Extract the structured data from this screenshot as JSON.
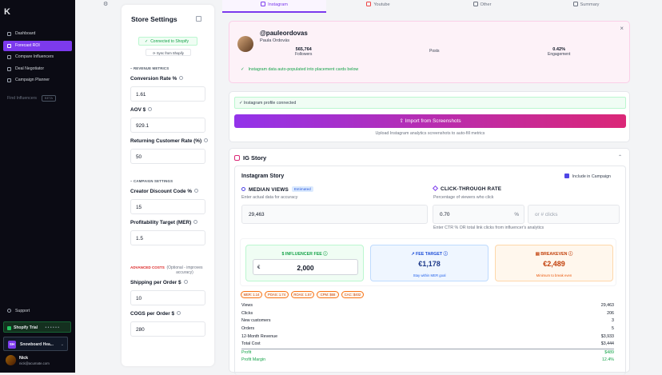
{
  "sidebar": {
    "logo": "K",
    "items": [
      {
        "label": "Dashboard"
      },
      {
        "label": "Forecast ROI"
      },
      {
        "label": "Compare Influencers"
      },
      {
        "label": "Deal Negotiator"
      },
      {
        "label": "Campaign Planner"
      }
    ],
    "find": "Find Influencers",
    "find_badge": "BETA",
    "support": "Support",
    "trial": "Shopify Trial",
    "trial_progress": "• • • • • •",
    "store_initials": "SH",
    "store_name": "Snowboard Hea...",
    "user_name": "Nick",
    "user_email": "nick@acumate.com"
  },
  "settings": {
    "title": "Store Settings",
    "connected": "Connected to Shopify",
    "sync": "Sync from Shopify",
    "revenue_section": "REVENUE METRICS",
    "conversion_label": "Conversion Rate %",
    "conversion_value": "1.61",
    "aov_label": "AOV $",
    "aov_value": "929.1",
    "returning_label": "Returning Customer Rate (%)",
    "returning_value": "50",
    "campaign_section": "CAMPAIGN SETTINGS",
    "discount_label": "Creator Discount Code %",
    "discount_value": "15",
    "mer_label": "Profitability Target (MER)",
    "mer_value": "1.5",
    "advanced_label": "ADVANCED COSTS",
    "advanced_note": "(Optional - improves accuracy)",
    "shipping_label": "Shipping per Order $",
    "shipping_value": "10",
    "cogs_label": "COGS per Order $",
    "cogs_value": "280"
  },
  "tabs": [
    {
      "label": "Instagram"
    },
    {
      "label": "Youtube"
    },
    {
      "label": "Other"
    },
    {
      "label": "Summary"
    }
  ],
  "profile": {
    "handle": "@pauleordovas",
    "name": "Paula Ordovás",
    "followers_value": "565,764",
    "followers_label": "Followers",
    "posts_label": "Posts",
    "engagement_value": "0.42%",
    "engagement_label": "Engagement",
    "autopop": "Instagram data auto-populated into placement cards below"
  },
  "import": {
    "connected": "✓ Instagram profile connected",
    "button": "Import from Screenshots",
    "note": "Upload Instagram analytics screenshots to auto-fill metrics"
  },
  "story": {
    "header": "IG Story",
    "title": "Instagram Story",
    "include": "Include in Campaign",
    "median_title": "MEDIAN VIEWS",
    "median_badge": "Estimated",
    "median_sub": "Enter actual data for accuracy",
    "median_value": "29,463",
    "ctr_title": "CLICK-THROUGH RATE",
    "ctr_sub": "Percentage of viewers who click",
    "ctr_value": "0.70",
    "ctr_unit": "%",
    "clicks_placeholder": "or # clicks",
    "ctr_note": "Enter CTR % OR total link clicks from influencer's analytics",
    "fee_title": "INFLUENCER FEE",
    "fee_currency": "€",
    "fee_value": "2,000",
    "target_title": "FEE TARGET",
    "target_value": "€1,178",
    "target_sub": "Stay within MER goal",
    "breakeven_title": "BREAKEVEN",
    "breakeven_value": "€2,489",
    "breakeven_sub": "Minimum to break even",
    "badges": [
      "MER: 1.14",
      "POAS: 1.74",
      "ROAS: 1.57",
      "CPM: $68",
      "CAC: $402"
    ],
    "rows": [
      {
        "label": "Views",
        "value": "29,463"
      },
      {
        "label": "Clicks",
        "value": "206"
      },
      {
        "label": "New customers",
        "value": "3"
      },
      {
        "label": "Orders",
        "value": "5"
      },
      {
        "label": "12-Month Revenue",
        "value": "$3,933"
      },
      {
        "label": "Total Cost",
        "value": "$3,444"
      },
      {
        "label": "Profit",
        "value": "$489"
      },
      {
        "label": "Profit Margin",
        "value": "12.4%"
      }
    ]
  }
}
